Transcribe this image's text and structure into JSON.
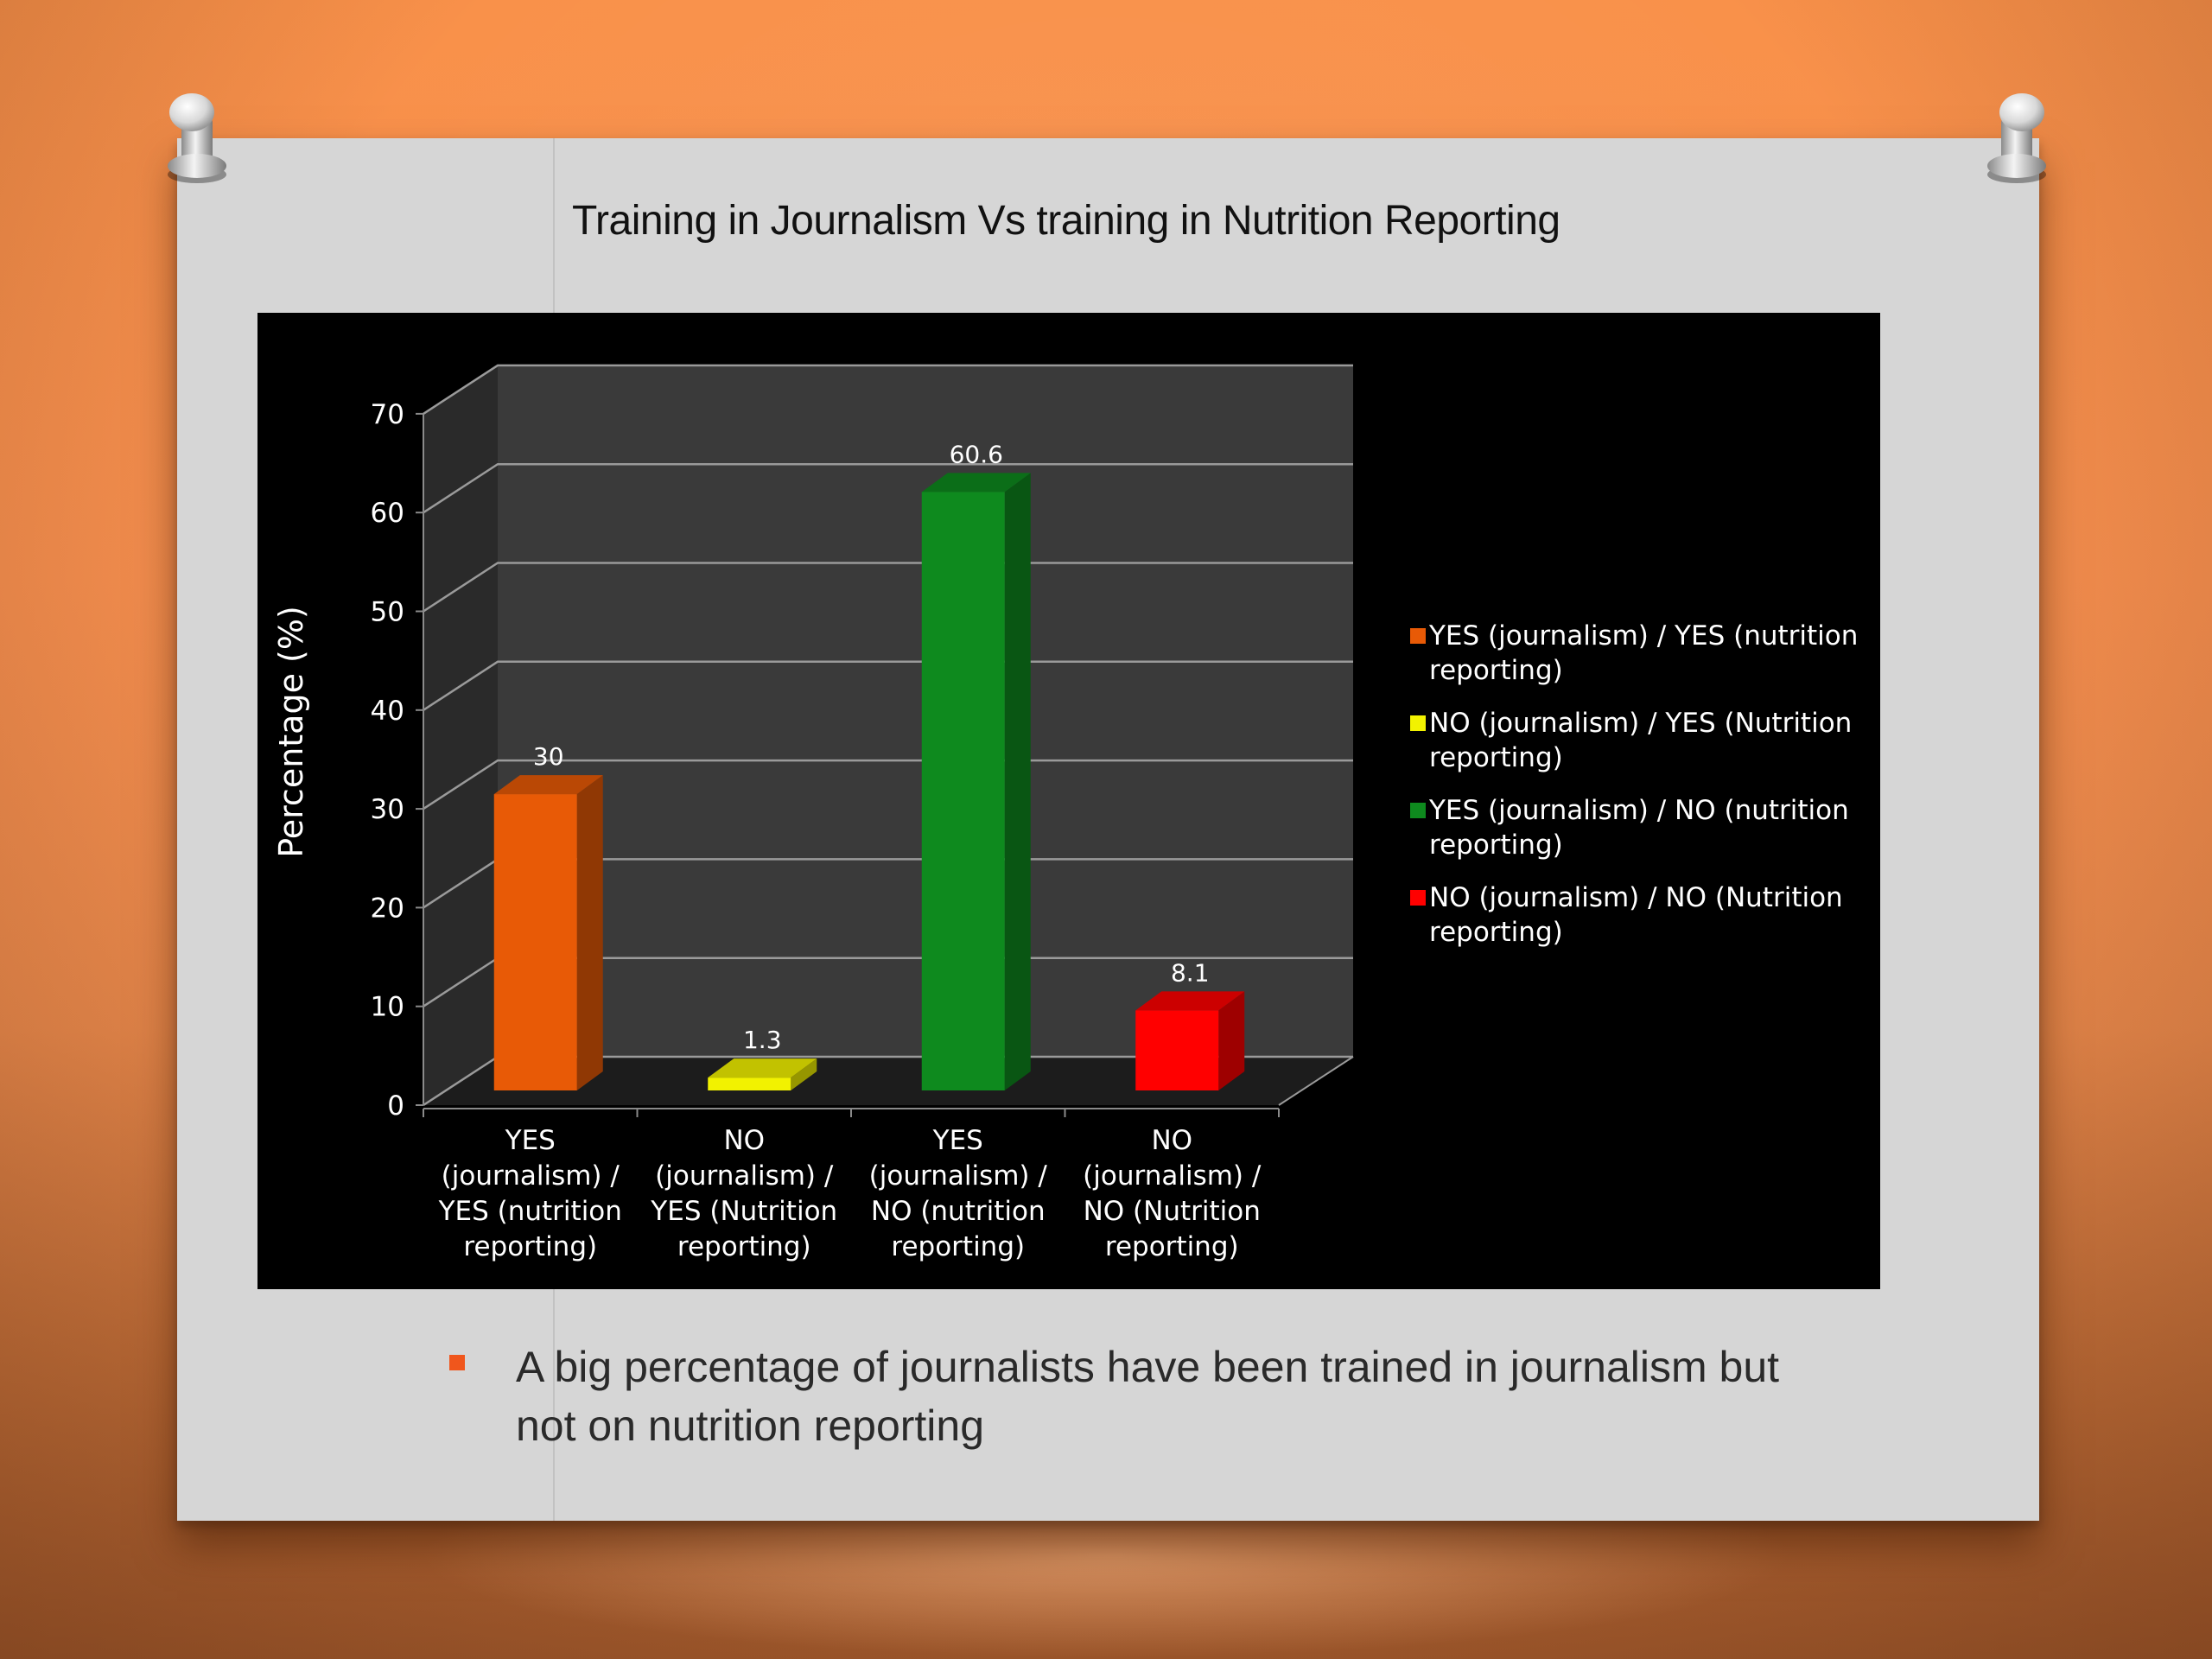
{
  "slide": {
    "title": "Training in Journalism Vs training in Nutrition Reporting",
    "bullet_text": "A big percentage of journalists have been trained in journalism but not on nutrition reporting",
    "accent_color": "#f0561c"
  },
  "chart_data": {
    "type": "bar",
    "title": "",
    "xlabel": "",
    "ylabel": "Percentage (%)",
    "ylim": [
      0,
      70
    ],
    "yticks": [
      0,
      10,
      20,
      30,
      40,
      50,
      60,
      70
    ],
    "grid": true,
    "three_d": true,
    "legend_position": "right",
    "categories": [
      "YES (journalism) / YES (nutrition reporting)",
      "NO (journalism) / YES (Nutrition reporting)",
      "YES (journalism) / NO (nutrition reporting)",
      "NO (journalism) / NO (Nutrition reporting)"
    ],
    "category_lines": [
      [
        "YES",
        "(journalism) /",
        "YES (nutrition",
        "reporting)"
      ],
      [
        "NO",
        "(journalism) /",
        "YES (Nutrition",
        "reporting)"
      ],
      [
        "YES",
        "(journalism) /",
        "NO (nutrition",
        "reporting)"
      ],
      [
        "NO",
        "(journalism) /",
        "NO (Nutrition",
        "reporting)"
      ]
    ],
    "values": [
      30,
      1.3,
      60.6,
      8.1
    ],
    "data_labels": [
      "30",
      "1.3",
      "60.6",
      "8.1"
    ],
    "colors": [
      "#e85a06",
      "#f2f200",
      "#0e8a1e",
      "#ff0000"
    ],
    "legend": [
      {
        "line1": "YES (journalism) / YES (nutrition",
        "line2": "reporting)"
      },
      {
        "line1": "NO (journalism) / YES (Nutrition",
        "line2": "reporting)"
      },
      {
        "line1": "YES (journalism) / NO (nutrition",
        "line2": "reporting)"
      },
      {
        "line1": "NO (journalism) / NO (Nutrition",
        "line2": "reporting)"
      }
    ]
  }
}
